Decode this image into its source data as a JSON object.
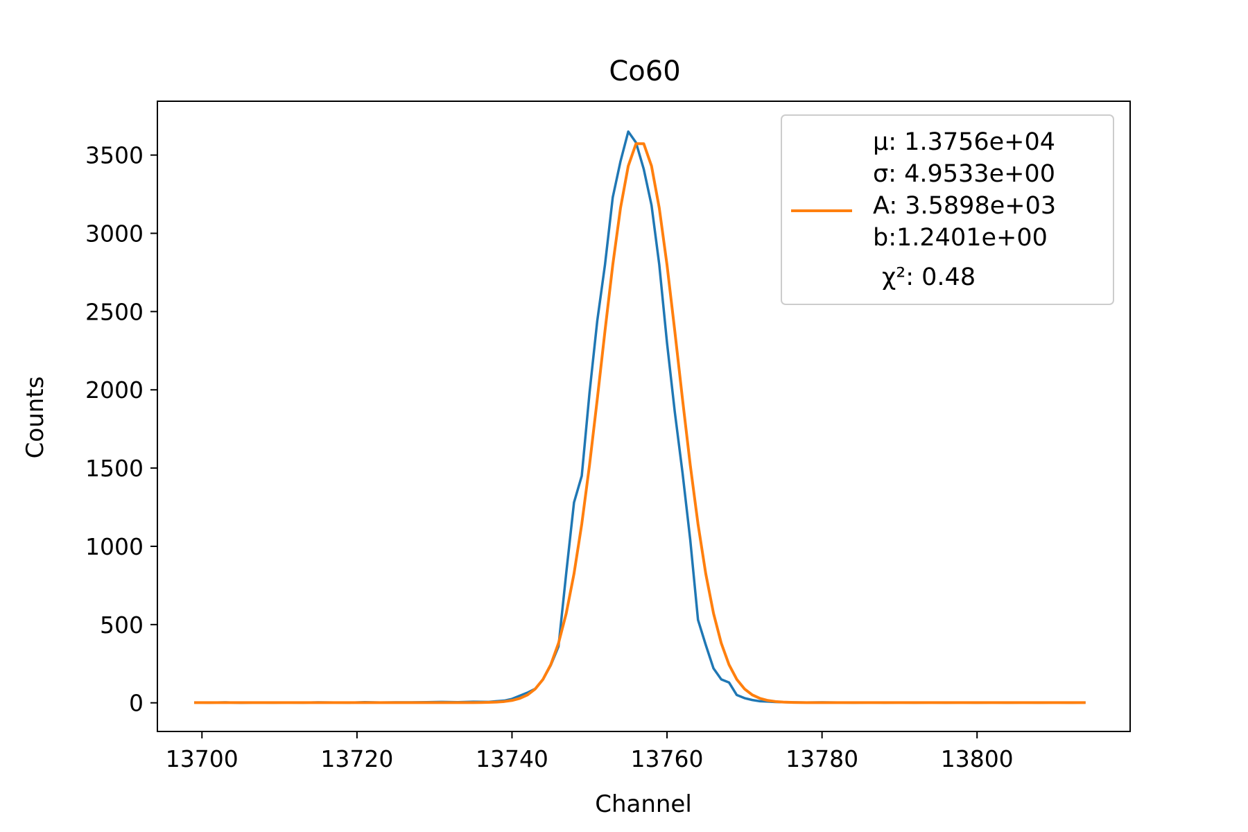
{
  "chart_data": {
    "type": "line",
    "title": "Co60",
    "xlabel": "Channel",
    "ylabel": "Counts",
    "xlim": [
      13694.25,
      13819.75
    ],
    "ylim": [
      -183,
      3844
    ],
    "xticks": [
      13700,
      13720,
      13740,
      13760,
      13780,
      13800
    ],
    "xtick_labels": [
      "13700",
      "13720",
      "13740",
      "13760",
      "13780",
      "13800"
    ],
    "yticks": [
      0,
      500,
      1000,
      1500,
      2000,
      2500,
      3000,
      3500
    ],
    "ytick_labels": [
      "0",
      "500",
      "1000",
      "1500",
      "2000",
      "2500",
      "3000",
      "3500"
    ],
    "legend_position": "upper-right",
    "grid": false,
    "series": [
      {
        "color": "#1f77b4",
        "x": [
          13699,
          13701,
          13703,
          13705,
          13707,
          13709,
          13711,
          13713,
          13715,
          13717,
          13719,
          13721,
          13723,
          13725,
          13727,
          13729,
          13731,
          13733,
          13735,
          13737,
          13738,
          13739,
          13740,
          13741,
          13742,
          13743,
          13744,
          13745,
          13746,
          13747,
          13748,
          13749,
          13750,
          13751,
          13752,
          13753,
          13754,
          13755,
          13756,
          13757,
          13758,
          13759,
          13760,
          13761,
          13762,
          13763,
          13764,
          13765,
          13766,
          13767,
          13768,
          13769,
          13770,
          13771,
          13772,
          13773,
          13774,
          13775,
          13776,
          13778,
          13780,
          13782,
          13784,
          13786,
          13788,
          13790,
          13792,
          13794,
          13796,
          13798,
          13800,
          13802,
          13804,
          13806,
          13808,
          13810,
          13812,
          13814
        ],
        "y": [
          2,
          1,
          3,
          0,
          2,
          1,
          2,
          1,
          3,
          2,
          1,
          4,
          2,
          3,
          3,
          4,
          6,
          4,
          7,
          6,
          10,
          14,
          25,
          45,
          65,
          90,
          150,
          240,
          360,
          830,
          1280,
          1450,
          1980,
          2440,
          2800,
          3230,
          3460,
          3650,
          3580,
          3410,
          3180,
          2800,
          2300,
          1860,
          1470,
          1040,
          530,
          370,
          220,
          150,
          130,
          50,
          30,
          18,
          10,
          8,
          5,
          4,
          3,
          2,
          3,
          2,
          1,
          2,
          1,
          2,
          1,
          2,
          1,
          2,
          1,
          2,
          1,
          2,
          1,
          2,
          1,
          2
        ]
      },
      {
        "color": "#ff7f0e",
        "legend": [
          "μ: 1.3756e+04",
          "σ: 4.9533e+00",
          "A: 3.5898e+03",
          "b:1.2401e+00",
          "χ²: 0.48"
        ],
        "fit": {
          "mu": 13756.5,
          "sigma": 4.9533,
          "A": 3589.8,
          "b": 1.2401,
          "x_start": 13699,
          "x_end": 13814,
          "step": 1
        }
      }
    ]
  }
}
